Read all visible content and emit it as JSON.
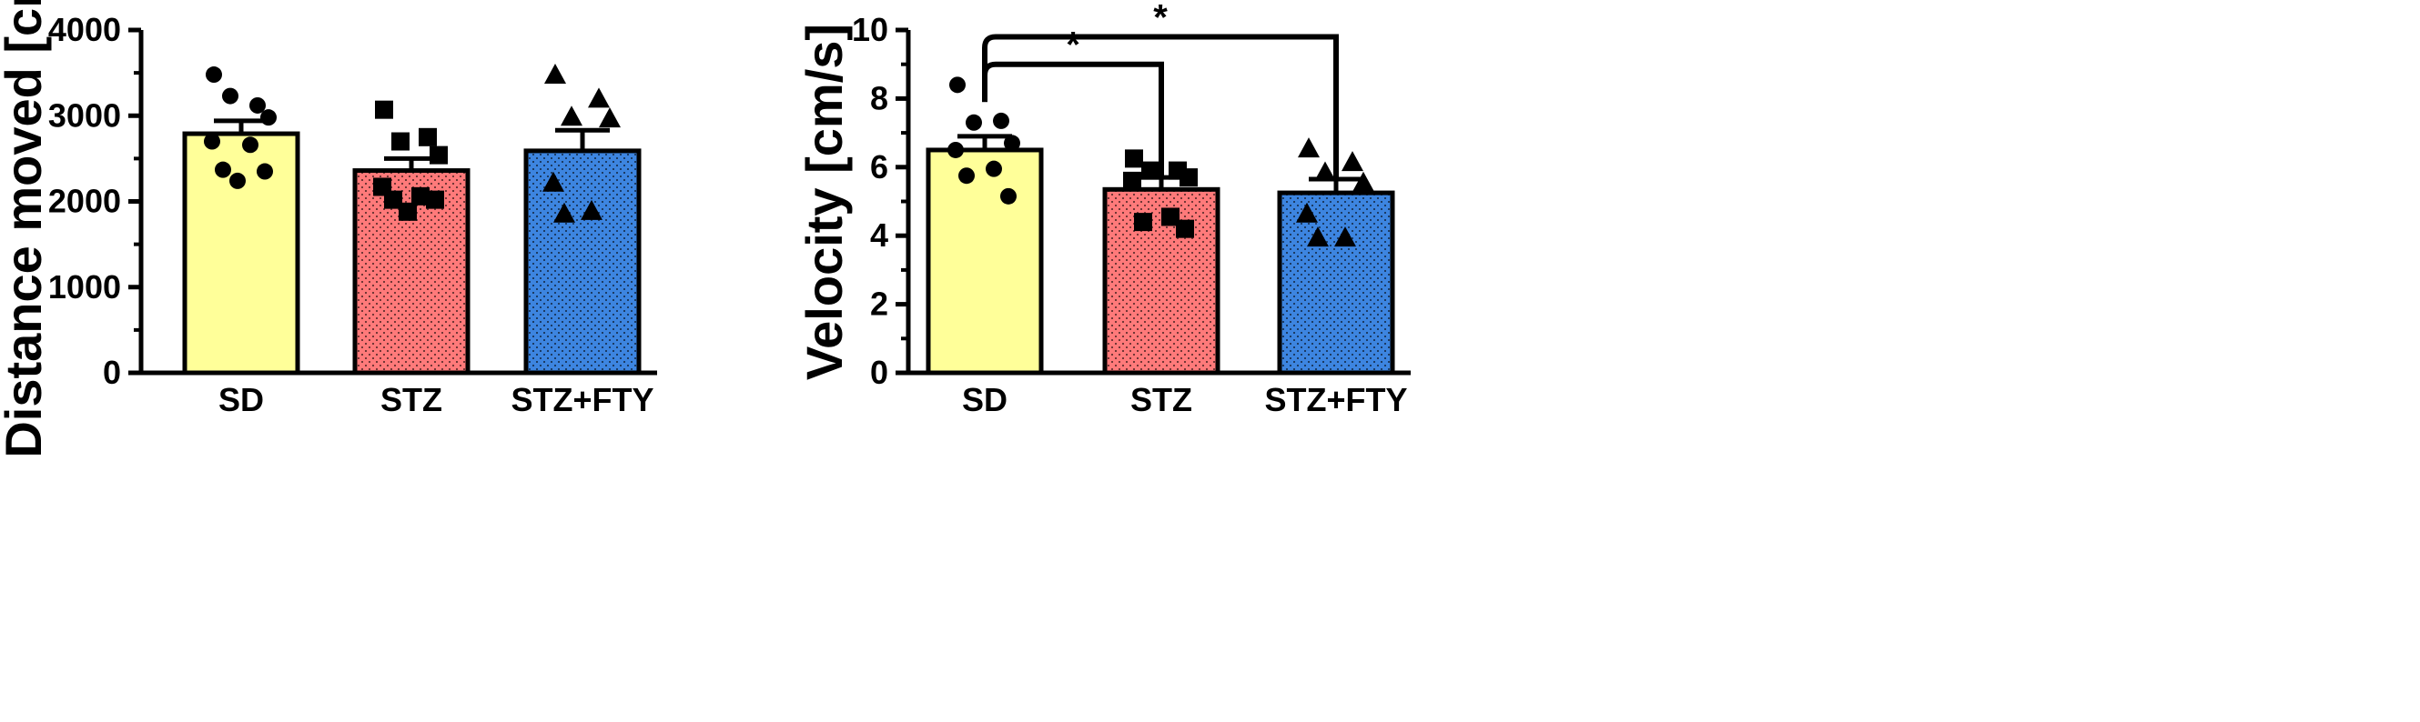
{
  "chart_data": [
    {
      "type": "bar",
      "title": "",
      "xlabel": "",
      "ylabel": "Distance moved [cm]",
      "ylim": [
        0,
        4000
      ],
      "yticks": [
        0,
        1000,
        2000,
        3000,
        4000
      ],
      "categories": [
        "SD",
        "STZ",
        "STZ+FTY"
      ],
      "values": [
        2790,
        2360,
        2590
      ],
      "sem": [
        150,
        140,
        240
      ],
      "colors": [
        "#ffff99",
        "#ff7a7a",
        "#3d85e0"
      ],
      "markers": [
        "circle",
        "square",
        "triangle"
      ],
      "points": [
        [
          3480,
          3120,
          3230,
          2980,
          2700,
          2660,
          2370,
          2350,
          2240
        ],
        [
          3070,
          2750,
          2700,
          2540,
          2170,
          2060,
          2020,
          2020,
          1880
        ],
        [
          3480,
          3200,
          2990,
          2970,
          2220,
          1890,
          1860
        ]
      ],
      "significance": []
    },
    {
      "type": "bar",
      "title": "",
      "xlabel": "",
      "ylabel": "Velocity [cm/s]",
      "ylim": [
        0,
        10
      ],
      "yticks": [
        0,
        2,
        4,
        6,
        8,
        10
      ],
      "categories": [
        "SD",
        "STZ",
        "STZ+FTY"
      ],
      "values": [
        6.5,
        5.35,
        5.25
      ],
      "sem": [
        0.4,
        0.35,
        0.4
      ],
      "colors": [
        "#ffff99",
        "#ff7a7a",
        "#3d85e0"
      ],
      "markers": [
        "circle",
        "square",
        "triangle"
      ],
      "points": [
        [
          8.4,
          7.35,
          7.3,
          6.7,
          6.5,
          5.95,
          5.75,
          5.15
        ],
        [
          6.25,
          5.9,
          5.9,
          5.7,
          5.6,
          4.55,
          4.4,
          4.2
        ],
        [
          6.55,
          6.15,
          5.85,
          5.55,
          4.65,
          3.95,
          3.95
        ]
      ],
      "significance": [
        {
          "from": "SD",
          "to": "STZ+FTY",
          "y": 9.8,
          "label": "*"
        },
        {
          "from": "SD",
          "to": "STZ",
          "y": 9.0,
          "label": "*"
        }
      ]
    }
  ]
}
